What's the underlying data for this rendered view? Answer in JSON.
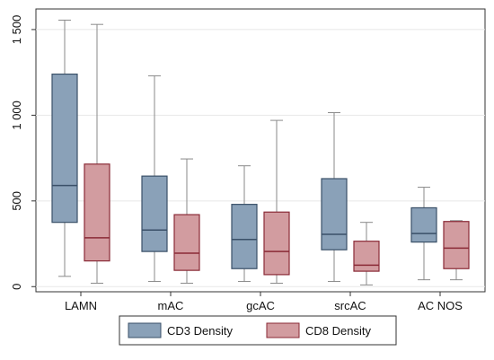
{
  "chart_data": {
    "type": "box",
    "categories": [
      "LAMN",
      "mAC",
      "gcAC",
      "srcAC",
      "AC NOS"
    ],
    "y_ticks": [
      {
        "value": 0,
        "label": "0"
      },
      {
        "value": 500,
        "label": "500"
      },
      {
        "value": 1000,
        "label": "1 000"
      },
      {
        "value": 1500,
        "label": "1 500"
      }
    ],
    "ylim": [
      -30,
      1620
    ],
    "grid": true,
    "legend_position": "bottom",
    "series": [
      {
        "name": "CD3 Density",
        "fill": "#8aa1b8",
        "stroke": "#3a5068",
        "boxes": [
          {
            "min": 60,
            "q1": 375,
            "median": 590,
            "q3": 1240,
            "max": 1555
          },
          {
            "min": 30,
            "q1": 205,
            "median": 330,
            "q3": 645,
            "max": 1230
          },
          {
            "min": 30,
            "q1": 105,
            "median": 275,
            "q3": 480,
            "max": 705
          },
          {
            "min": 30,
            "q1": 215,
            "median": 305,
            "q3": 630,
            "max": 1015
          },
          {
            "min": 40,
            "q1": 260,
            "median": 310,
            "q3": 460,
            "max": 580
          }
        ]
      },
      {
        "name": "CD8 Density",
        "fill": "#d29ca0",
        "stroke": "#8a2a36",
        "boxes": [
          {
            "min": 20,
            "q1": 150,
            "median": 285,
            "q3": 715,
            "max": 1530
          },
          {
            "min": 20,
            "q1": 95,
            "median": 195,
            "q3": 420,
            "max": 745
          },
          {
            "min": 20,
            "q1": 70,
            "median": 205,
            "q3": 435,
            "max": 970
          },
          {
            "min": 10,
            "q1": 90,
            "median": 125,
            "q3": 265,
            "max": 375
          },
          {
            "min": 40,
            "q1": 105,
            "median": 225,
            "q3": 380,
            "max": 385
          }
        ]
      }
    ]
  }
}
